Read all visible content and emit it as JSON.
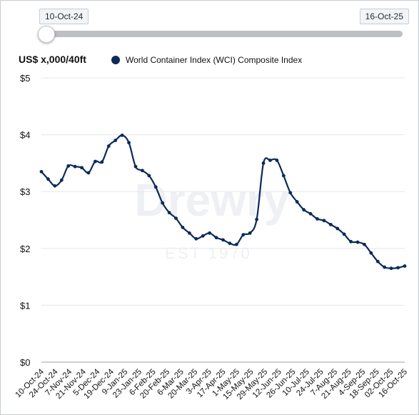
{
  "range_slider": {
    "start_label": "10-Oct-24",
    "end_label": "16-Oct-25"
  },
  "y_unit_label": "US$ x,000/40ft",
  "watermark": {
    "brand": "Drewry",
    "tagline": "EST 1970"
  },
  "colors": {
    "series": "#0b2a5b",
    "grid": "#e5e7eb",
    "axis": "#9aa0a6"
  },
  "chart_data": {
    "type": "line",
    "ylim": [
      0,
      5
    ],
    "y_ticks": [
      "$0",
      "$1",
      "$2",
      "$3",
      "$4",
      "$5"
    ],
    "x_tick_labels": [
      "10-Oct-24",
      "24-Oct-24",
      "7-Nov-24",
      "21-Nov-24",
      "5-Dec-24",
      "19-Dec-24",
      "9-Jan-25",
      "23-Jan-25",
      "6-Feb-25",
      "20-Feb-25",
      "6-Mar-25",
      "20-Mar-25",
      "3-Apr-25",
      "17-Apr-25",
      "1-May-25",
      "15-May-25",
      "29-May-25",
      "12-Jun-25",
      "26-Jun-25",
      "10-Jul-25",
      "24-Jul-25",
      "7-Aug-25",
      "21-Aug-25",
      "4-Sep-25",
      "18-Sep-25",
      "02-Oct-25",
      "16-Oct-25"
    ],
    "legend_position": "top",
    "series": [
      {
        "name": "World Container Index (WCI) Composite Index",
        "values": [
          3.35,
          3.22,
          3.1,
          3.2,
          3.45,
          3.44,
          3.42,
          3.33,
          3.53,
          3.52,
          3.8,
          3.9,
          3.99,
          3.86,
          3.44,
          3.37,
          3.28,
          3.08,
          2.8,
          2.63,
          2.53,
          2.37,
          2.27,
          2.17,
          2.22,
          2.27,
          2.19,
          2.15,
          2.09,
          2.07,
          2.24,
          2.27,
          2.51,
          3.5,
          3.55,
          3.55,
          3.28,
          2.98,
          2.82,
          2.68,
          2.61,
          2.52,
          2.49,
          2.42,
          2.35,
          2.25,
          2.12,
          2.11,
          2.07,
          1.92,
          1.77,
          1.67,
          1.65,
          1.66,
          1.69
        ]
      }
    ]
  }
}
